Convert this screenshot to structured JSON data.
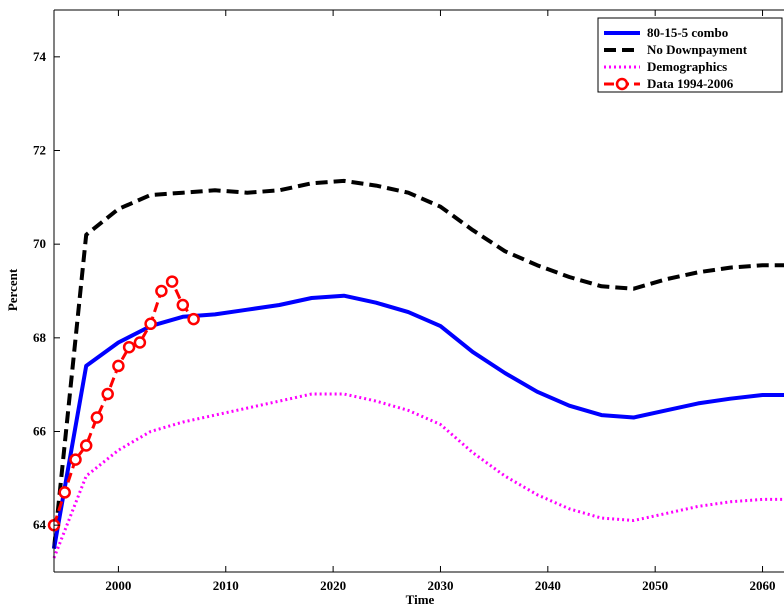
{
  "chart_data": {
    "type": "line",
    "xlabel": "Time",
    "ylabel": "Percent",
    "xlim": [
      1994,
      2062
    ],
    "ylim": [
      63.0,
      75.0
    ],
    "xticks": [
      2000,
      2010,
      2020,
      2030,
      2040,
      2050,
      2060
    ],
    "xtick_labels": [
      "2000",
      "2010",
      "2020",
      "2030",
      "2040",
      "2050",
      "2060"
    ],
    "yticks": [
      64,
      66,
      68,
      70,
      72,
      74
    ],
    "ytick_labels": [
      "64",
      "66",
      "68",
      "70",
      "72",
      "74"
    ],
    "grid": false,
    "legend_position": "top-right",
    "series": [
      {
        "name": "80-15-5 combo",
        "color": "#0000ff",
        "style": "solid",
        "x": [
          1994,
          1997,
          2000,
          2003,
          2006,
          2009,
          2012,
          2015,
          2018,
          2021,
          2024,
          2027,
          2030,
          2033,
          2036,
          2039,
          2042,
          2045,
          2048,
          2051,
          2054,
          2057,
          2060,
          2062
        ],
        "y": [
          63.5,
          67.4,
          67.9,
          68.25,
          68.45,
          68.5,
          68.6,
          68.7,
          68.85,
          68.9,
          68.75,
          68.55,
          68.25,
          67.7,
          67.25,
          66.85,
          66.55,
          66.35,
          66.3,
          66.45,
          66.6,
          66.7,
          66.78,
          66.78
        ]
      },
      {
        "name": "No Downpayment",
        "color": "#000000",
        "style": "dashed",
        "x": [
          1994,
          1997,
          2000,
          2003,
          2006,
          2009,
          2012,
          2015,
          2018,
          2021,
          2024,
          2027,
          2030,
          2033,
          2036,
          2039,
          2042,
          2045,
          2048,
          2051,
          2054,
          2057,
          2060,
          2062
        ],
        "y": [
          63.5,
          70.2,
          70.75,
          71.05,
          71.1,
          71.15,
          71.1,
          71.15,
          71.3,
          71.35,
          71.25,
          71.1,
          70.8,
          70.3,
          69.85,
          69.55,
          69.3,
          69.1,
          69.05,
          69.25,
          69.4,
          69.5,
          69.55,
          69.55
        ]
      },
      {
        "name": "Demographics",
        "color": "#ff00ff",
        "style": "dotted",
        "x": [
          1994,
          1997,
          2000,
          2003,
          2006,
          2009,
          2012,
          2015,
          2018,
          2021,
          2024,
          2027,
          2030,
          2033,
          2036,
          2039,
          2042,
          2045,
          2048,
          2051,
          2054,
          2057,
          2060,
          2062
        ],
        "y": [
          63.3,
          65.05,
          65.6,
          66.0,
          66.2,
          66.35,
          66.5,
          66.65,
          66.8,
          66.8,
          66.65,
          66.45,
          66.15,
          65.55,
          65.05,
          64.65,
          64.35,
          64.15,
          64.1,
          64.25,
          64.4,
          64.5,
          64.55,
          64.55
        ]
      },
      {
        "name": "Data 1994-2006",
        "color": "#ff0000",
        "style": "dashed-marker",
        "x": [
          1994,
          1995,
          1996,
          1997,
          1998,
          1999,
          2000,
          2001,
          2002,
          2003,
          2004,
          2005,
          2006,
          2007
        ],
        "y": [
          64.0,
          64.7,
          65.4,
          65.7,
          66.3,
          66.8,
          67.4,
          67.8,
          67.9,
          68.3,
          69.0,
          69.2,
          68.7,
          68.4
        ]
      }
    ]
  }
}
